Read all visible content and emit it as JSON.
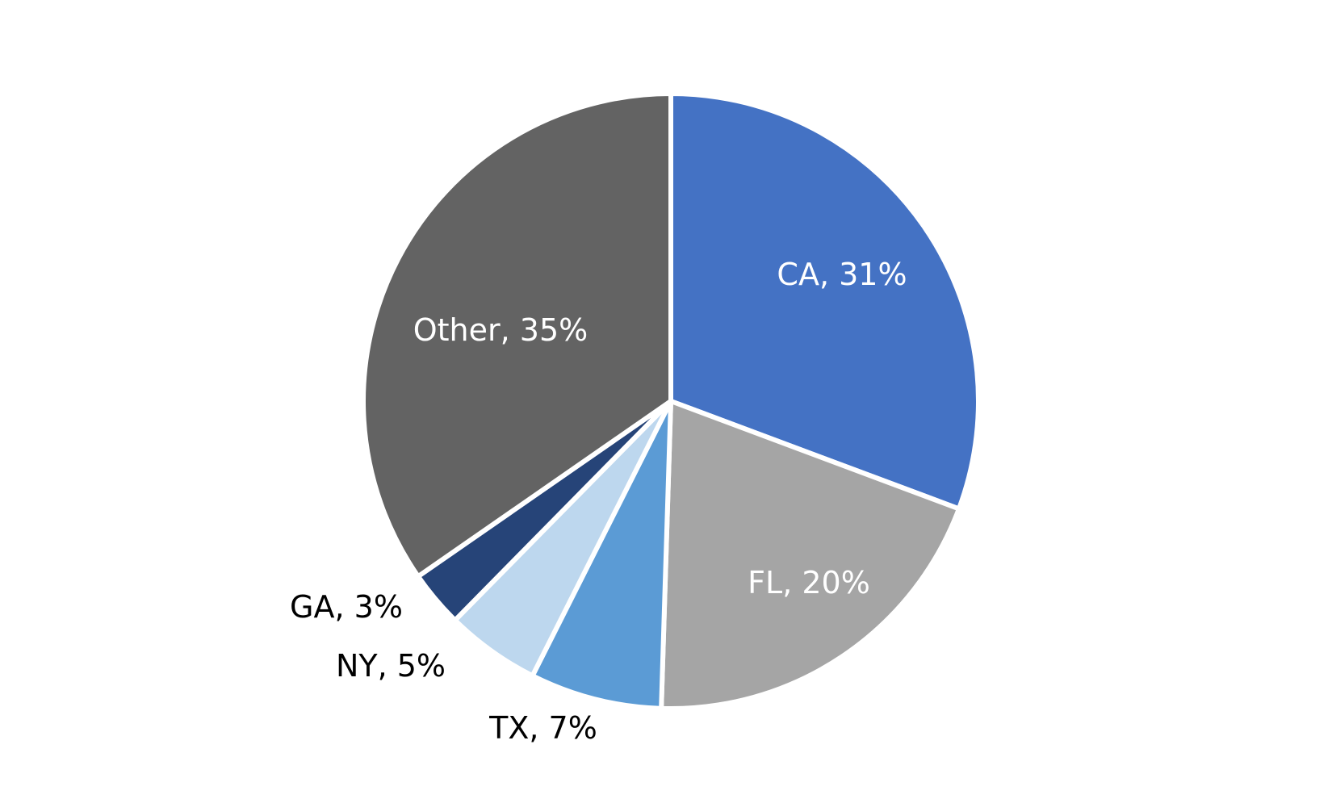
{
  "chart_data": {
    "type": "pie",
    "title": "",
    "categories": [
      "CA",
      "FL",
      "TX",
      "NY",
      "GA",
      "Other"
    ],
    "values": [
      31,
      20,
      7,
      5,
      3,
      35
    ],
    "unit": "%",
    "labels": [
      "CA, 31%",
      "FL, 20%",
      "TX, 7%",
      "NY, 5%",
      "GA, 3%",
      "Other, 35%"
    ],
    "colors": [
      "#4472C4",
      "#A5A5A5",
      "#5B9BD5",
      "#BDD7EE",
      "#264478",
      "#636363"
    ],
    "label_colors": [
      "#ffffff",
      "#ffffff",
      "#000000",
      "#000000",
      "#000000",
      "#ffffff"
    ],
    "start_angle": "12 o'clock",
    "direction": "clockwise",
    "legend": "none"
  }
}
